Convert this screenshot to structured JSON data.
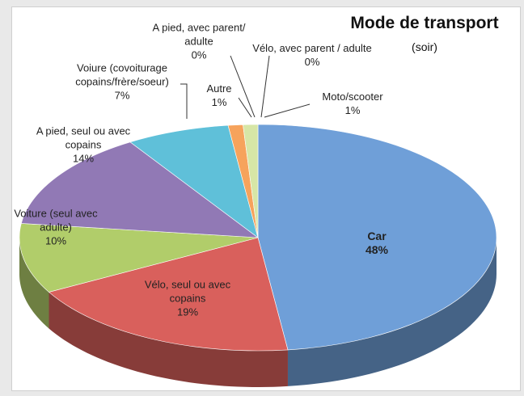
{
  "chart_data": {
    "type": "pie",
    "title": "Mode de transport",
    "subtitle": "(soir)",
    "categories": [
      "Car",
      "Vélo, seul ou avec copains",
      "Voiture (seul avec adulte)",
      "A pied, seul ou avec copains",
      "Voiure (covoiturage copains/frère/soeur)",
      "Autre",
      "A pied, avec parent/ adulte",
      "Vélo, avec parent / adulte",
      "Moto/scooter"
    ],
    "values": [
      48,
      19,
      10,
      14,
      7,
      1,
      0,
      0,
      1
    ],
    "value_labels": [
      "48%",
      "19%",
      "10%",
      "14%",
      "7%",
      "1%",
      "0%",
      "0%",
      "1%"
    ],
    "colors": [
      "#6f9fd8",
      "#d9605c",
      "#b1cd6a",
      "#9179b5",
      "#5fc0d9",
      "#f6a35c",
      "#f2b6b3",
      "#c7b9dc",
      "#d7e6a6"
    ]
  }
}
